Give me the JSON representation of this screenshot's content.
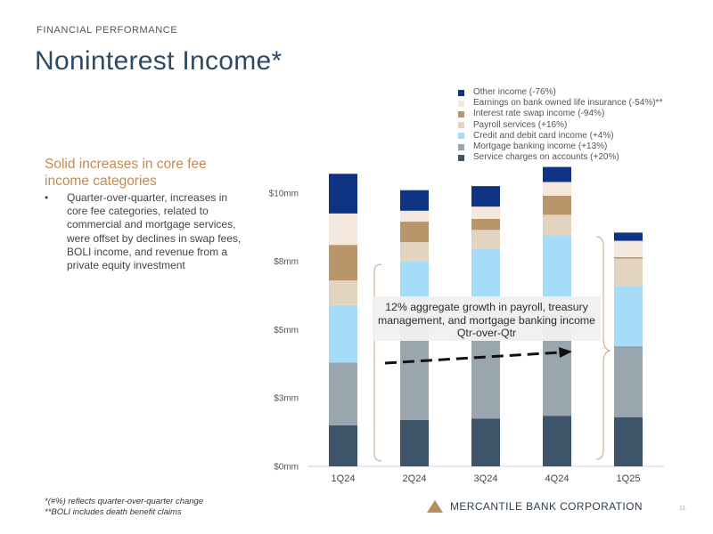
{
  "header": {
    "kicker": "FINANCIAL PERFORMANCE",
    "title": "Noninterest Income*"
  },
  "sidebar": {
    "subtitle": "Solid increases in core fee income categories",
    "bullet_marker": "•",
    "bullet": "Quarter-over-quarter, increases in core fee categories, related to commercial and mortgage services, were offset by declines in swap fees, BOLI income, and revenue from a private equity investment"
  },
  "footnotes": {
    "line1": "*(#%) reflects quarter-over-quarter change",
    "line2": "**BOLI includes death benefit claims"
  },
  "branding": {
    "company": "MERCANTILE BANK CORPORATION",
    "page_number": "11"
  },
  "callout": {
    "text": "12% aggregate growth in payroll, treasury management, and mortgage banking income Qtr-over-Qtr"
  },
  "chart_data": {
    "type": "bar",
    "stacked": true,
    "categories": [
      "1Q24",
      "2Q24",
      "3Q24",
      "4Q24",
      "1Q25"
    ],
    "y_tick_labels": [
      "$0mm",
      "$3mm",
      "$5mm",
      "$8mm",
      "$10mm"
    ],
    "y_tick_values": [
      0,
      2.5,
      5,
      7.5,
      10
    ],
    "ylim": [
      0,
      12.5
    ],
    "series": [
      {
        "name": "Service charges on accounts (+20%)",
        "color": "#3e5468",
        "values": [
          1.5,
          1.7,
          1.75,
          1.85,
          1.8
        ]
      },
      {
        "name": "Mortgage banking income (+13%)",
        "color": "#9aa6ae",
        "values": [
          2.3,
          3.6,
          3.55,
          3.75,
          2.6
        ]
      },
      {
        "name": "Credit and debit card income (+4%)",
        "color": "#a6dcf7",
        "values": [
          2.1,
          2.2,
          2.65,
          2.85,
          2.2
        ]
      },
      {
        "name": "Payroll services (+16%)",
        "color": "#e3d3c1",
        "values": [
          0.9,
          0.7,
          0.7,
          0.75,
          1.0
        ]
      },
      {
        "name": "Interest rate swap income (-94%)",
        "color": "#b8966a",
        "values": [
          1.3,
          0.75,
          0.4,
          0.7,
          0.05
        ]
      },
      {
        "name": "Earnings on bank owned life insurance (-54%)**",
        "color": "#f3e7de",
        "values": [
          1.15,
          0.4,
          0.45,
          0.5,
          0.6
        ]
      },
      {
        "name": "Other income (-76%)",
        "color": "#0d3382",
        "values": [
          1.45,
          0.75,
          0.75,
          0.55,
          0.3
        ]
      }
    ],
    "legend_order": [
      6,
      5,
      4,
      3,
      2,
      1,
      0
    ],
    "legend_position": "top-right",
    "annotation": "12% aggregate growth in payroll, treasury management, and mortgage banking income Qtr-over-Qtr"
  }
}
